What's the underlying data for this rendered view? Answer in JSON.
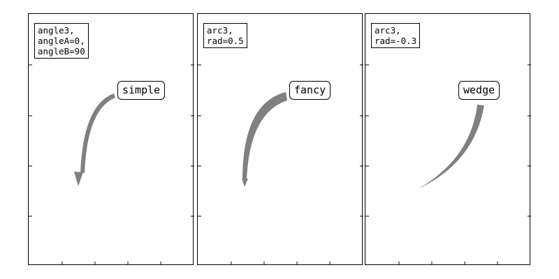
{
  "colors": {
    "arrow": "#808080",
    "frame": "#000000",
    "background": "#ffffff"
  },
  "panels": [
    {
      "connection_lines": [
        "angle3,",
        "angleA=0,",
        "angleB=90"
      ],
      "label": "simple",
      "arrowstyle": "simple"
    },
    {
      "connection_lines": [
        "arc3,",
        "rad=0.5"
      ],
      "label": "fancy",
      "arrowstyle": "fancy"
    },
    {
      "connection_lines": [
        "arc3,",
        "rad=-0.3"
      ],
      "label": "wedge",
      "arrowstyle": "wedge"
    }
  ]
}
